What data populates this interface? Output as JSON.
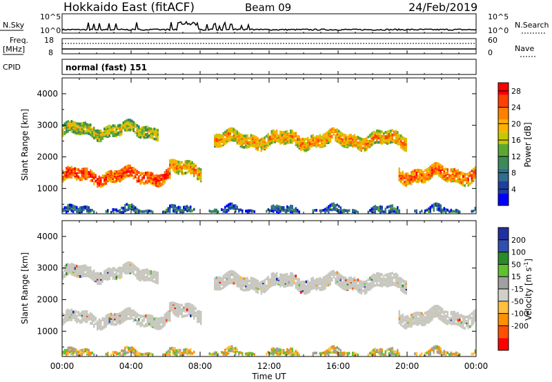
{
  "header": {
    "station": "Hokkaido East (fitACF)",
    "beam": "Beam 09",
    "date": "24/Feb/2019"
  },
  "strip": {
    "nsky_label": "N.Sky",
    "nsky_ticks": [
      "10^5",
      "10^0"
    ],
    "nsearch_label": "N.Search",
    "freq_label_1": "Freq.",
    "freq_label_2": "[MHz]",
    "freq_ticks": [
      "18",
      "8"
    ],
    "nave_ticks": [
      "60",
      "0"
    ],
    "nave_label": "Nave",
    "cpid_label": "CPID",
    "cpid_value": "normal (fast) 151"
  },
  "colors": {
    "power_scale": [
      "#0000ff",
      "#1f3f9f",
      "#2e6e8e",
      "#3a8a5a",
      "#5aa832",
      "#c8c800",
      "#ffb000",
      "#ff8000",
      "#ff4000",
      "#ff0000"
    ],
    "velocity_scale": [
      "#2030a0",
      "#3050b0",
      "#2a8a2a",
      "#60c030",
      "#a0a0a0",
      "#d0d0c8",
      "#ffc040",
      "#ff9000",
      "#ff5000",
      "#ff0000"
    ],
    "echo_gray": "#c8c8c0"
  },
  "chart_data": [
    {
      "type": "heatmap",
      "name": "power",
      "ylabel": "Slant Range [km]",
      "ylim": [
        200,
        4500
      ],
      "xlim_hours": [
        0,
        24
      ],
      "x_ticks": [
        "00:00",
        "04:00",
        "08:00",
        "12:00",
        "16:00",
        "20:00",
        "00:00"
      ],
      "y_ticks": [
        1000,
        2000,
        3000,
        4000
      ],
      "colorbar_label": "Power [dB]",
      "colorbar_ticks": [
        4,
        8,
        12,
        16,
        20,
        24,
        28
      ],
      "colorbar_range": [
        0,
        30
      ],
      "echo_bands": [
        {
          "x": [
            0,
            6.2
          ],
          "y_center": 1450,
          "half_width": 180,
          "power": 27
        },
        {
          "x": [
            6.2,
            8.0
          ],
          "y_center": 1650,
          "half_width": 200,
          "power": 22
        },
        {
          "x": [
            0,
            5.5
          ],
          "y_center": 2900,
          "half_width": 180,
          "power": 18
        },
        {
          "x": [
            8.8,
            20.0
          ],
          "y_center": 2600,
          "half_width": 200,
          "power": 22
        },
        {
          "x": [
            19.5,
            24
          ],
          "y_center": 1500,
          "half_width": 200,
          "power": 25
        },
        {
          "x": [
            0,
            24
          ],
          "y_center": 300,
          "half_width": 100,
          "power": 10
        }
      ]
    },
    {
      "type": "heatmap",
      "name": "velocity",
      "ylabel": "Slant Range [km]",
      "ylim": [
        200,
        4500
      ],
      "xlabel": "Time UT",
      "x_ticks": [
        "00:00",
        "04:00",
        "08:00",
        "12:00",
        "16:00",
        "20:00",
        "00:00"
      ],
      "y_ticks": [
        1000,
        2000,
        3000,
        4000
      ],
      "colorbar_label": "Velocity [m s",
      "colorbar_label_sup": "-1",
      "colorbar_ticks": [
        "200",
        "100",
        "50",
        "15",
        "-15",
        "-50",
        "-100",
        "-200"
      ]
    }
  ]
}
